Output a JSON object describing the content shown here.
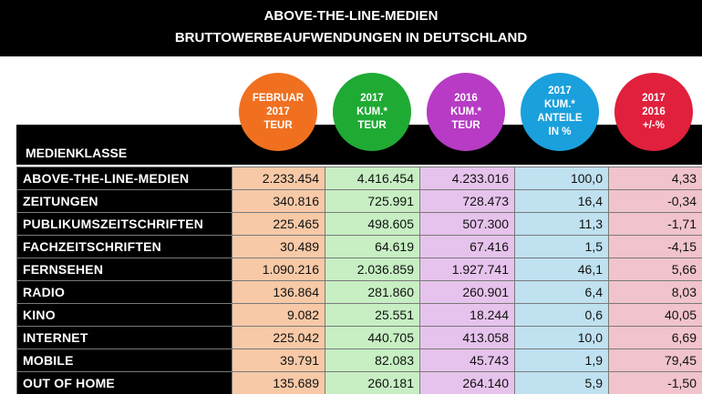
{
  "title_line1": "ABOVE-THE-LINE-MEDIEN",
  "title_line2": "BRUTTOWERBEAUFWENDUNGEN IN DEUTSCHLAND",
  "row_header": "MEDIENKLASSE",
  "colors": {
    "bubble_orange": "#f07020",
    "bubble_green": "#1faa34",
    "bubble_purple": "#b73bc4",
    "bubble_blue": "#1aa0dc",
    "bubble_red": "#e0203c",
    "cell_orange": "#f7c9a6",
    "cell_green": "#c7efc3",
    "cell_purple": "#e6c3ec",
    "cell_blue": "#bfe1f0",
    "cell_red": "#f1c3cc"
  },
  "columns": [
    {
      "lines": [
        "FEBRUAR",
        "2017",
        "TEUR"
      ],
      "color": "bubble_orange"
    },
    {
      "lines": [
        "2017",
        "KUM.*",
        "TEUR"
      ],
      "color": "bubble_green"
    },
    {
      "lines": [
        "2016",
        "KUM.*",
        "TEUR"
      ],
      "color": "bubble_purple"
    },
    {
      "lines": [
        "2017",
        "KUM.*",
        "ANTEILE",
        "IN %"
      ],
      "color": "bubble_blue"
    },
    {
      "lines": [
        "2017",
        "2016",
        "+/-%"
      ],
      "color": "bubble_red"
    }
  ],
  "chart_data": {
    "type": "table",
    "title": "ABOVE-THE-LINE-MEDIEN BRUTTOWERBEAUFWENDUNGEN IN DEUTSCHLAND",
    "row_header": "MEDIENKLASSE",
    "columns": [
      "FEBRUAR 2017 TEUR",
      "2017 KUM.* TEUR",
      "2016 KUM.* TEUR",
      "2017 KUM.* ANTEILE IN %",
      "2017 2016 +/-%"
    ],
    "rows": [
      {
        "label": "ABOVE-THE-LINE-MEDIEN",
        "values": [
          "2.233.454",
          "4.416.454",
          "4.233.016",
          "100,0",
          "4,33"
        ]
      },
      {
        "label": "ZEITUNGEN",
        "values": [
          "340.816",
          "725.991",
          "728.473",
          "16,4",
          "-0,34"
        ]
      },
      {
        "label": "PUBLIKUMSZEITSCHRIFTEN",
        "values": [
          "225.465",
          "498.605",
          "507.300",
          "11,3",
          "-1,71"
        ]
      },
      {
        "label": "FACHZEITSCHRIFTEN",
        "values": [
          "30.489",
          "64.619",
          "67.416",
          "1,5",
          "-4,15"
        ]
      },
      {
        "label": "FERNSEHEN",
        "values": [
          "1.090.216",
          "2.036.859",
          "1.927.741",
          "46,1",
          "5,66"
        ]
      },
      {
        "label": "RADIO",
        "values": [
          "136.864",
          "281.860",
          "260.901",
          "6,4",
          "8,03"
        ]
      },
      {
        "label": "KINO",
        "values": [
          "9.082",
          "25.551",
          "18.244",
          "0,6",
          "40,05"
        ]
      },
      {
        "label": "INTERNET",
        "values": [
          "225.042",
          "440.705",
          "413.058",
          "10,0",
          "6,69"
        ]
      },
      {
        "label": "MOBILE",
        "values": [
          "39.791",
          "82.083",
          "45.743",
          "1,9",
          "79,45"
        ]
      },
      {
        "label": "OUT OF HOME",
        "values": [
          "135.689",
          "260.181",
          "264.140",
          "5,9",
          "-1,50"
        ]
      }
    ]
  }
}
